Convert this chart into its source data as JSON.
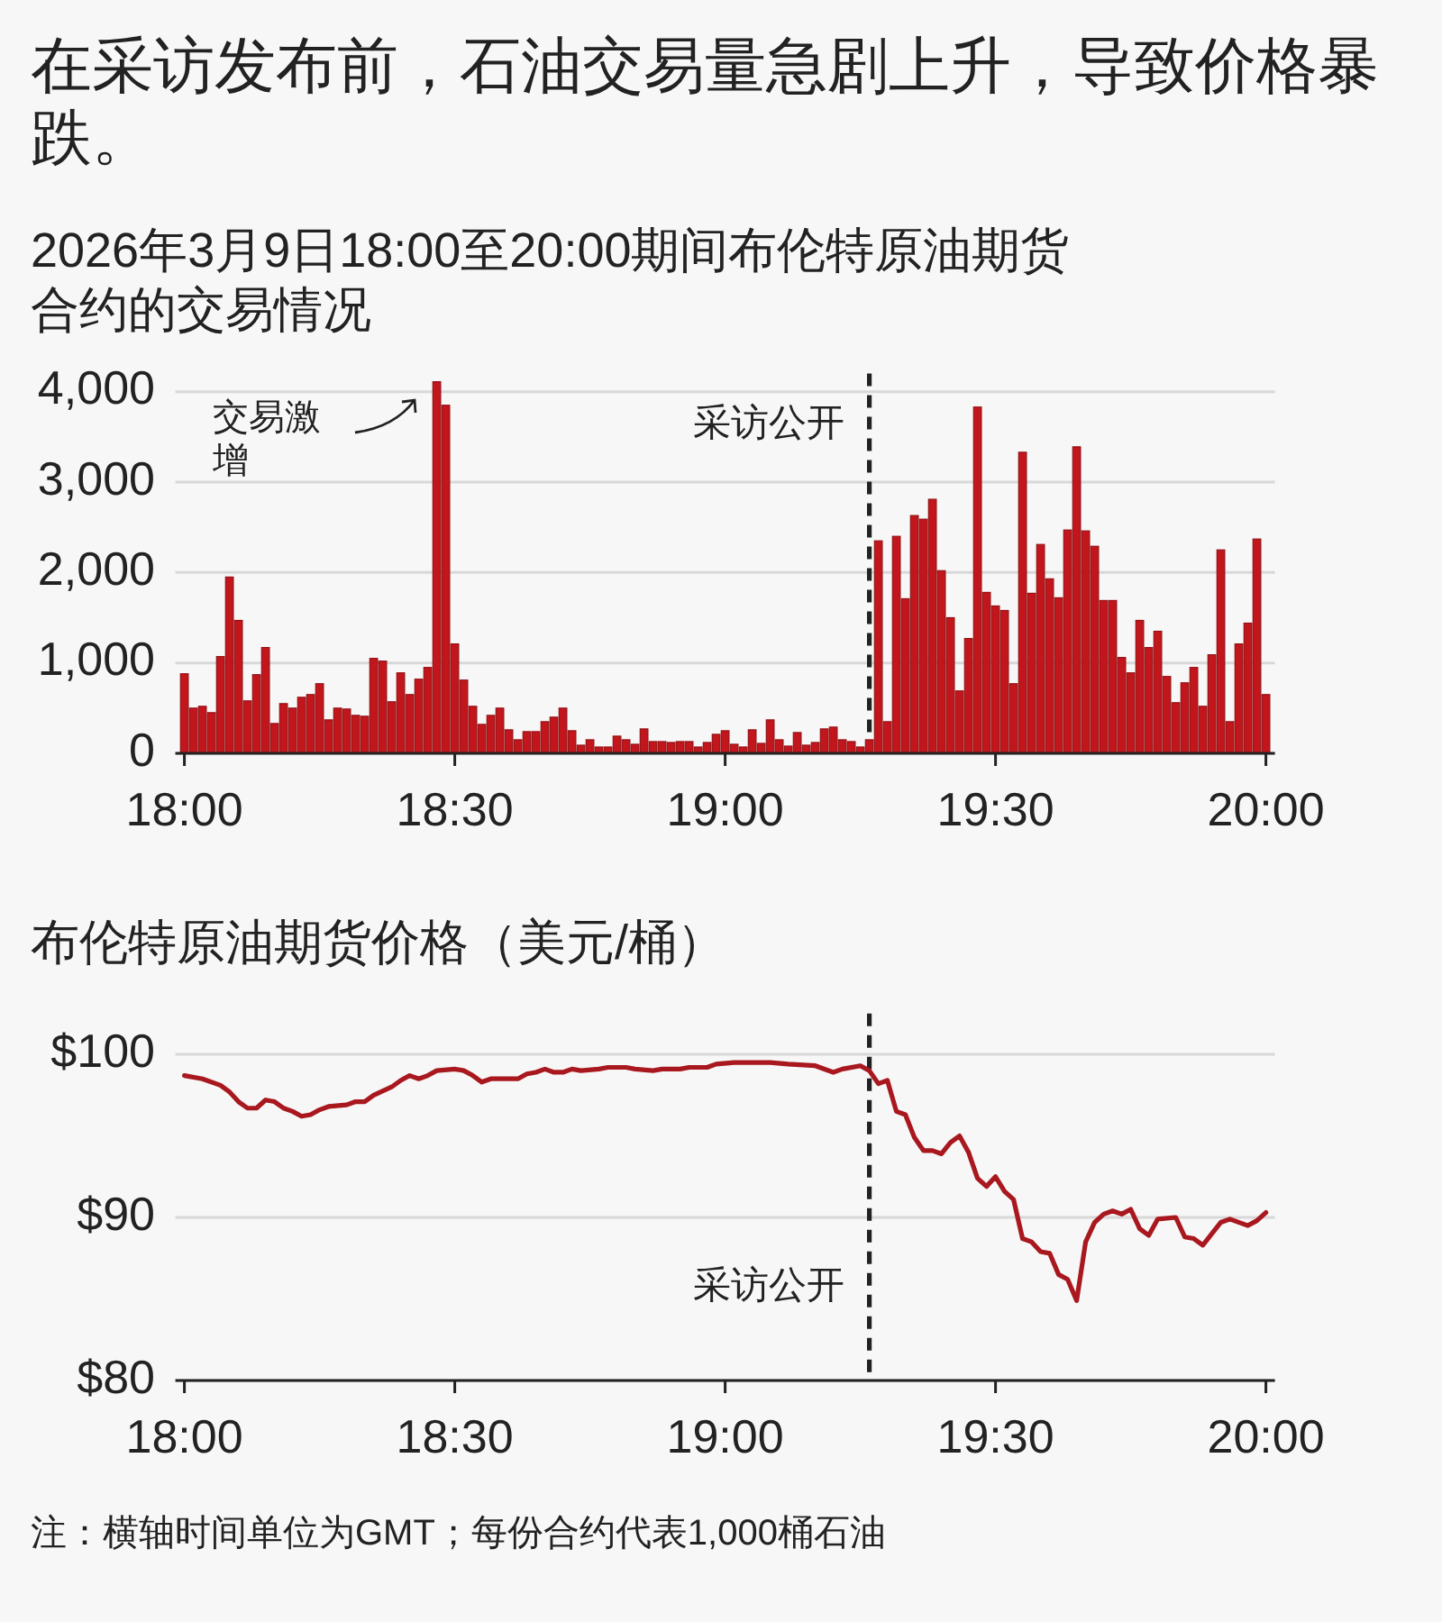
{
  "chart_data": [
    {
      "type": "bar",
      "title": "在采访发布前，石油交易量急剧上升，导致价格暴跌。",
      "subtitle": "2026年3月9日18:00至20:00期间布伦特原油期货合约的交易情况",
      "x": [
        "2026-03-09T18:00",
        "2026-03-09T18:01",
        "2026-03-09T18:02",
        "2026-03-09T18:03",
        "2026-03-09T18:04",
        "2026-03-09T18:05",
        "2026-03-09T18:06",
        "2026-03-09T18:07",
        "2026-03-09T18:08",
        "2026-03-09T18:09",
        "2026-03-09T18:10",
        "2026-03-09T18:11",
        "2026-03-09T18:12",
        "2026-03-09T18:13",
        "2026-03-09T18:14",
        "2026-03-09T18:15",
        "2026-03-09T18:16",
        "2026-03-09T18:17",
        "2026-03-09T18:18",
        "2026-03-09T18:19",
        "2026-03-09T18:20",
        "2026-03-09T18:21",
        "2026-03-09T18:22",
        "2026-03-09T18:23",
        "2026-03-09T18:24",
        "2026-03-09T18:25",
        "2026-03-09T18:26",
        "2026-03-09T18:27",
        "2026-03-09T18:28",
        "2026-03-09T18:29",
        "2026-03-09T18:30",
        "2026-03-09T18:31",
        "2026-03-09T18:32",
        "2026-03-09T18:33",
        "2026-03-09T18:34",
        "2026-03-09T18:35",
        "2026-03-09T18:36",
        "2026-03-09T18:37",
        "2026-03-09T18:38",
        "2026-03-09T18:39",
        "2026-03-09T18:40",
        "2026-03-09T18:41",
        "2026-03-09T18:42",
        "2026-03-09T18:43",
        "2026-03-09T18:44",
        "2026-03-09T18:45",
        "2026-03-09T18:46",
        "2026-03-09T18:47",
        "2026-03-09T18:48",
        "2026-03-09T18:49",
        "2026-03-09T18:50",
        "2026-03-09T18:51",
        "2026-03-09T18:52",
        "2026-03-09T18:53",
        "2026-03-09T18:54",
        "2026-03-09T18:55",
        "2026-03-09T18:56",
        "2026-03-09T18:57",
        "2026-03-09T18:58",
        "2026-03-09T18:59",
        "2026-03-09T19:00",
        "2026-03-09T19:01",
        "2026-03-09T19:02",
        "2026-03-09T19:03",
        "2026-03-09T19:04",
        "2026-03-09T19:05",
        "2026-03-09T19:06",
        "2026-03-09T19:07",
        "2026-03-09T19:08",
        "2026-03-09T19:09",
        "2026-03-09T19:10",
        "2026-03-09T19:11",
        "2026-03-09T19:12",
        "2026-03-09T19:13",
        "2026-03-09T19:14",
        "2026-03-09T19:15",
        "2026-03-09T19:16",
        "2026-03-09T19:17",
        "2026-03-09T19:18",
        "2026-03-09T19:19",
        "2026-03-09T19:20",
        "2026-03-09T19:21",
        "2026-03-09T19:22",
        "2026-03-09T19:23",
        "2026-03-09T19:24",
        "2026-03-09T19:25",
        "2026-03-09T19:26",
        "2026-03-09T19:27",
        "2026-03-09T19:28",
        "2026-03-09T19:29",
        "2026-03-09T19:30",
        "2026-03-09T19:31",
        "2026-03-09T19:32",
        "2026-03-09T19:33",
        "2026-03-09T19:34",
        "2026-03-09T19:35",
        "2026-03-09T19:36",
        "2026-03-09T19:37",
        "2026-03-09T19:38",
        "2026-03-09T19:39",
        "2026-03-09T19:40",
        "2026-03-09T19:41",
        "2026-03-09T19:42",
        "2026-03-09T19:43",
        "2026-03-09T19:44",
        "2026-03-09T19:45",
        "2026-03-09T19:46",
        "2026-03-09T19:47",
        "2026-03-09T19:48",
        "2026-03-09T19:49",
        "2026-03-09T19:50",
        "2026-03-09T19:51",
        "2026-03-09T19:52",
        "2026-03-09T19:53",
        "2026-03-09T19:54",
        "2026-03-09T19:55",
        "2026-03-09T19:56",
        "2026-03-09T19:57",
        "2026-03-09T19:58",
        "2026-03-09T19:59",
        "2026-03-09T20:00"
      ],
      "values": [
        880,
        500,
        520,
        450,
        1070,
        1950,
        1470,
        580,
        870,
        1170,
        330,
        550,
        500,
        620,
        650,
        770,
        370,
        500,
        490,
        420,
        410,
        1050,
        1020,
        570,
        890,
        650,
        820,
        950,
        4110,
        3850,
        1210,
        810,
        520,
        320,
        420,
        500,
        260,
        150,
        240,
        240,
        350,
        400,
        500,
        250,
        90,
        150,
        70,
        70,
        190,
        150,
        100,
        270,
        130,
        130,
        120,
        130,
        130,
        70,
        120,
        210,
        250,
        100,
        70,
        260,
        110,
        370,
        150,
        80,
        230,
        90,
        120,
        270,
        290,
        150,
        130,
        70,
        150,
        2350,
        350,
        2400,
        1710,
        2630,
        2590,
        2810,
        2020,
        1500,
        690,
        1270,
        3830,
        1780,
        1630,
        1580,
        770,
        3330,
        1770,
        2310,
        1930,
        1720,
        2470,
        3390,
        2460,
        2290,
        1690,
        1690,
        1060,
        890,
        1470,
        1170,
        1350,
        850,
        560,
        780,
        950,
        520,
        1090,
        2250,
        350,
        1210,
        1440,
        2370,
        650
      ],
      "color": "#c3161c",
      "xlim": [
        "2026-03-09T17:59",
        "2026-03-09T20:01"
      ],
      "xticks": [
        {
          "value": "2026-03-09T18:00",
          "label": "18:00"
        },
        {
          "value": "2026-03-09T18:30",
          "label": "18:30"
        },
        {
          "value": "2026-03-09T19:00",
          "label": "19:00"
        },
        {
          "value": "2026-03-09T19:30",
          "label": "19:30"
        },
        {
          "value": "2026-03-09T20:00",
          "label": "20:00"
        }
      ],
      "ylim": [
        0,
        4200
      ],
      "yticks": [
        0,
        {
          "value": 1000,
          "label": "1,000"
        },
        {
          "value": 2000,
          "label": "2,000"
        },
        {
          "value": 3000,
          "label": "3,000"
        },
        {
          "value": 4000,
          "label": "4,000"
        }
      ],
      "grid": "y",
      "ref_lines": [
        {
          "axis": "x",
          "value": "2026-03-09T19:16",
          "label": "采访公开",
          "color": "#222222",
          "line_style": "dashed"
        }
      ],
      "annotations": [
        "交易激增"
      ]
    },
    {
      "type": "line",
      "title": "布伦特原油期货价格（美元/桶）",
      "x": [
        "2026-03-09T18:00",
        "2026-03-09T18:02",
        "2026-03-09T18:04",
        "2026-03-09T18:05",
        "2026-03-09T18:06",
        "2026-03-09T18:07",
        "2026-03-09T18:08",
        "2026-03-09T18:09",
        "2026-03-09T18:10",
        "2026-03-09T18:11",
        "2026-03-09T18:12",
        "2026-03-09T18:13",
        "2026-03-09T18:14",
        "2026-03-09T18:15",
        "2026-03-09T18:16",
        "2026-03-09T18:18",
        "2026-03-09T18:19",
        "2026-03-09T18:20",
        "2026-03-09T18:21",
        "2026-03-09T18:23",
        "2026-03-09T18:24",
        "2026-03-09T18:25",
        "2026-03-09T18:26",
        "2026-03-09T18:27",
        "2026-03-09T18:28",
        "2026-03-09T18:30",
        "2026-03-09T18:31",
        "2026-03-09T18:32",
        "2026-03-09T18:33",
        "2026-03-09T18:34",
        "2026-03-09T18:36",
        "2026-03-09T18:37",
        "2026-03-09T18:38",
        "2026-03-09T18:39",
        "2026-03-09T18:40",
        "2026-03-09T18:41",
        "2026-03-09T18:42",
        "2026-03-09T18:43",
        "2026-03-09T18:44",
        "2026-03-09T18:46",
        "2026-03-09T18:47",
        "2026-03-09T18:49",
        "2026-03-09T18:50",
        "2026-03-09T18:52",
        "2026-03-09T18:53",
        "2026-03-09T18:55",
        "2026-03-09T18:56",
        "2026-03-09T18:58",
        "2026-03-09T18:59",
        "2026-03-09T19:01",
        "2026-03-09T19:03",
        "2026-03-09T19:05",
        "2026-03-09T19:07",
        "2026-03-09T19:10",
        "2026-03-09T19:12",
        "2026-03-09T19:13",
        "2026-03-09T19:15",
        "2026-03-09T19:16",
        "2026-03-09T19:17",
        "2026-03-09T19:18",
        "2026-03-09T19:19",
        "2026-03-09T19:20",
        "2026-03-09T19:21",
        "2026-03-09T19:22",
        "2026-03-09T19:23",
        "2026-03-09T19:24",
        "2026-03-09T19:25",
        "2026-03-09T19:26",
        "2026-03-09T19:27",
        "2026-03-09T19:28",
        "2026-03-09T19:29",
        "2026-03-09T19:30",
        "2026-03-09T19:31",
        "2026-03-09T19:32",
        "2026-03-09T19:33",
        "2026-03-09T19:34",
        "2026-03-09T19:35",
        "2026-03-09T19:36",
        "2026-03-09T19:37",
        "2026-03-09T19:38",
        "2026-03-09T19:39",
        "2026-03-09T19:40",
        "2026-03-09T19:41",
        "2026-03-09T19:42",
        "2026-03-09T19:43",
        "2026-03-09T19:44",
        "2026-03-09T19:45",
        "2026-03-09T19:46",
        "2026-03-09T19:47",
        "2026-03-09T19:48",
        "2026-03-09T19:50",
        "2026-03-09T19:51",
        "2026-03-09T19:52",
        "2026-03-09T19:53",
        "2026-03-09T19:54",
        "2026-03-09T19:55",
        "2026-03-09T19:56",
        "2026-03-09T19:58",
        "2026-03-09T19:59",
        "2026-03-09T20:00"
      ],
      "values": [
        98.7,
        98.5,
        98.1,
        97.7,
        97.1,
        96.7,
        96.7,
        97.2,
        97.1,
        96.7,
        96.5,
        96.2,
        96.3,
        96.6,
        96.8,
        96.9,
        97.1,
        97.1,
        97.5,
        98.0,
        98.4,
        98.7,
        98.5,
        98.7,
        99.0,
        99.1,
        99.0,
        98.7,
        98.3,
        98.5,
        98.5,
        98.5,
        98.8,
        98.9,
        99.1,
        98.9,
        98.9,
        99.1,
        99.0,
        99.1,
        99.2,
        99.2,
        99.1,
        99.0,
        99.1,
        99.1,
        99.2,
        99.2,
        99.4,
        99.5,
        99.5,
        99.5,
        99.4,
        99.3,
        98.9,
        99.1,
        99.3,
        99.0,
        98.2,
        98.4,
        96.5,
        96.3,
        94.9,
        94.1,
        94.1,
        93.9,
        94.6,
        95.0,
        94.0,
        92.4,
        91.9,
        92.5,
        91.6,
        91.1,
        88.7,
        88.5,
        87.9,
        87.8,
        86.5,
        86.2,
        84.9,
        88.5,
        89.7,
        90.2,
        90.4,
        90.2,
        90.5,
        89.3,
        88.9,
        89.9,
        90.0,
        88.8,
        88.7,
        88.3,
        89.0,
        89.7,
        89.9,
        89.5,
        89.8,
        90.3
      ],
      "color": "#a8181e",
      "xlim": [
        "2026-03-09T17:59",
        "2026-03-09T20:01"
      ],
      "xticks": [
        {
          "value": "2026-03-09T18:00",
          "label": "18:00"
        },
        {
          "value": "2026-03-09T18:30",
          "label": "18:30"
        },
        {
          "value": "2026-03-09T19:00",
          "label": "19:00"
        },
        {
          "value": "2026-03-09T19:30",
          "label": "19:30"
        },
        {
          "value": "2026-03-09T20:00",
          "label": "20:00"
        }
      ],
      "ylim": [
        80,
        102.5
      ],
      "yticks": [
        {
          "value": 80,
          "label": "$80"
        },
        {
          "value": 90,
          "label": "$90"
        },
        {
          "value": 100,
          "label": "$100"
        }
      ],
      "grid": "y",
      "ref_lines": [
        {
          "axis": "x",
          "value": "2026-03-09T19:16",
          "label": "采访公开",
          "color": "#222222",
          "line_style": "dashed"
        }
      ],
      "annotations": [
        "注：横轴时间单位为GMT；每份合约代表1,000桶石油"
      ]
    }
  ]
}
